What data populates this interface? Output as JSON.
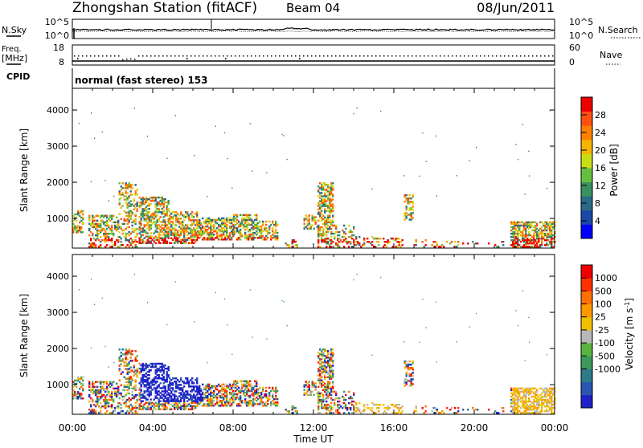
{
  "header": {
    "title": "Zhongshan Station (fitACF)",
    "beam": "Beam 04",
    "date": "08/Jun/2011"
  },
  "top_panels": {
    "nsky_label": "N.Sky",
    "nsky_ticks": [
      "10^5",
      "10^0"
    ],
    "nsearch_label": "N.Search",
    "nsearch_ticks": [
      "10^5",
      "10^0"
    ],
    "freq_label_line1": "Freq.",
    "freq_label_line2": "[MHz]",
    "freq_ticks": [
      "18",
      "8"
    ],
    "nave_label": "Nave",
    "nave_ticks": [
      "60",
      "0"
    ],
    "cpid_label": "CPID",
    "cpid_text": "normal (fast stereo) 153"
  },
  "chart_data": [
    {
      "type": "heatmap",
      "panel": "power",
      "ylabel": "Slant Range [km]",
      "ylim": [
        180,
        4600
      ],
      "yticks": [
        1000,
        2000,
        3000,
        4000
      ],
      "x_range_hours": [
        0,
        24
      ],
      "colorbar": {
        "label": "Power [dB]",
        "range": [
          0,
          32
        ],
        "ticks": [
          "28",
          "24",
          "20",
          "16",
          "12",
          "8",
          "4"
        ],
        "colors": [
          "#0000ff",
          "#1a48a8",
          "#2a6a86",
          "#3a9060",
          "#66c040",
          "#c8dc18",
          "#f4b400",
          "#ff8000",
          "#ff5010",
          "#ee0000"
        ]
      }
    },
    {
      "type": "heatmap",
      "panel": "velocity",
      "ylabel": "Slant Range [km]",
      "ylim": [
        180,
        4600
      ],
      "yticks": [
        1000,
        2000,
        3000,
        4000
      ],
      "x_range_hours": [
        0,
        24
      ],
      "colorbar": {
        "label": "Velocity [m s^-1]",
        "ticks": [
          "1000",
          "500",
          "100",
          "25",
          "-25",
          "-100",
          "-500",
          "-1000"
        ],
        "colors": [
          "#2020c8",
          "#2a55b0",
          "#2e7a88",
          "#3c9a5c",
          "#5ab440",
          "#b8b8b8",
          "#f0c000",
          "#ff9800",
          "#ff7000",
          "#ff3000",
          "#ee0000"
        ]
      }
    }
  ],
  "x_axis": {
    "label": "Time UT",
    "ticks": [
      "00:00",
      "04:00",
      "08:00",
      "12:00",
      "16:00",
      "20:00",
      "00:00"
    ]
  }
}
